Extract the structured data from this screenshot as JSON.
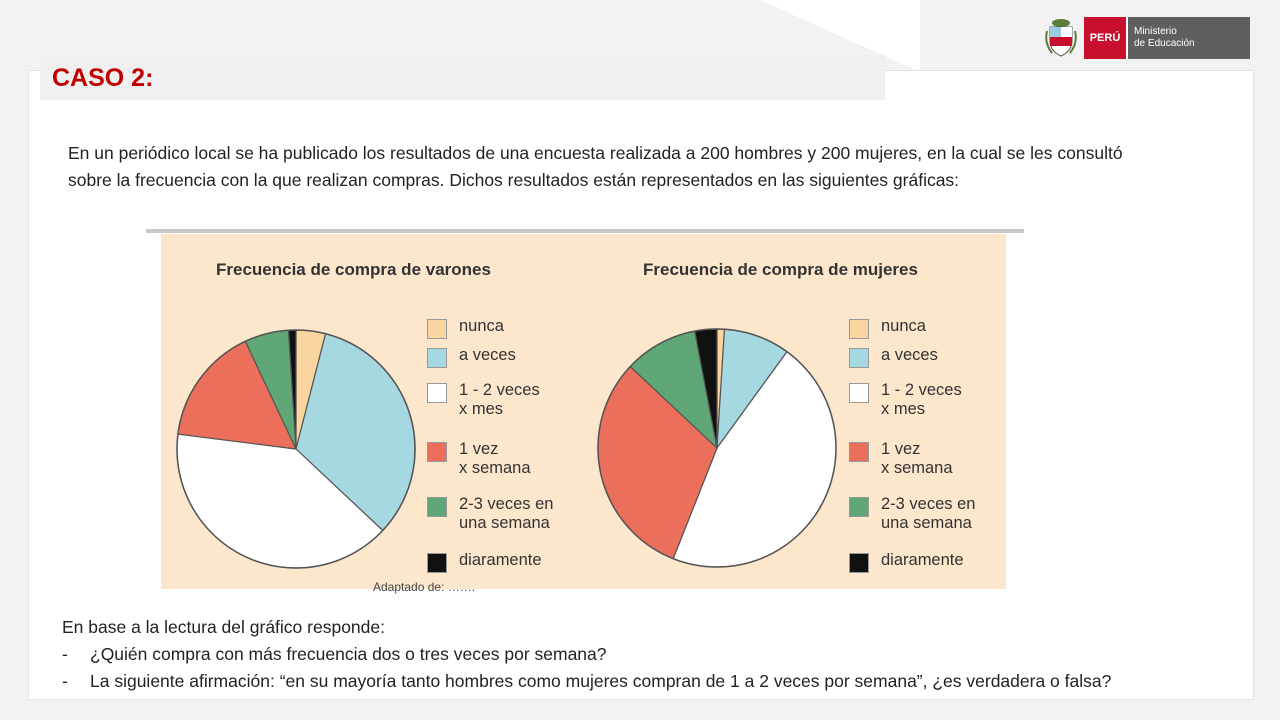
{
  "header": {
    "title": "CASO 2:",
    "logo": {
      "country": "PERÚ",
      "ministry_line1": "Ministerio",
      "ministry_line2": "de Educación"
    }
  },
  "intro_text": "En un periódico local se ha publicado los resultados de una encuesta realizada a 200 hombres y 200 mujeres, en la cual se les consultó sobre la frecuencia con la que realizan compras. Dichos resultados están representados en las siguientes gráficas:",
  "figure": {
    "background": "#fce6cc",
    "source_note": "Adaptado de: ……."
  },
  "chart_data": [
    {
      "type": "pie",
      "title": "Frecuencia de compra de varones",
      "categories": [
        "nunca",
        "a veces",
        "1 - 2 veces\nx mes",
        "1 vez\nx semana",
        "2-3 veces en\nuna semana",
        "diaramente"
      ],
      "values": [
        4,
        33,
        40,
        16,
        6,
        1
      ],
      "unit": "%",
      "colors": [
        "#fbd5a0",
        "#a6d8e2",
        "#ffffff",
        "#ec6f5b",
        "#5fa777",
        "#111111"
      ]
    },
    {
      "type": "pie",
      "title": "Frecuencia de compra de mujeres",
      "categories": [
        "nunca",
        "a veces",
        "1 - 2 veces\nx mes",
        "1 vez\nx semana",
        "2-3 veces en\nuna semana",
        "diaramente"
      ],
      "values": [
        1,
        9,
        46,
        31,
        10,
        3
      ],
      "unit": "%",
      "colors": [
        "#fbd5a0",
        "#a6d8e2",
        "#ffffff",
        "#ec6f5b",
        "#5fa777",
        "#111111"
      ]
    }
  ],
  "prompt": {
    "lead": "En base a la lectura del gráfico responde:",
    "questions": [
      {
        "dash": "-",
        "text": "¿Quién compra con más frecuencia dos o tres veces por semana?"
      },
      {
        "dash": "-",
        "text": "La siguiente afirmación: “en su mayoría tanto hombres como mujeres compran de 1 a 2 veces por semana”, ¿es verdadera o falsa?"
      }
    ]
  }
}
